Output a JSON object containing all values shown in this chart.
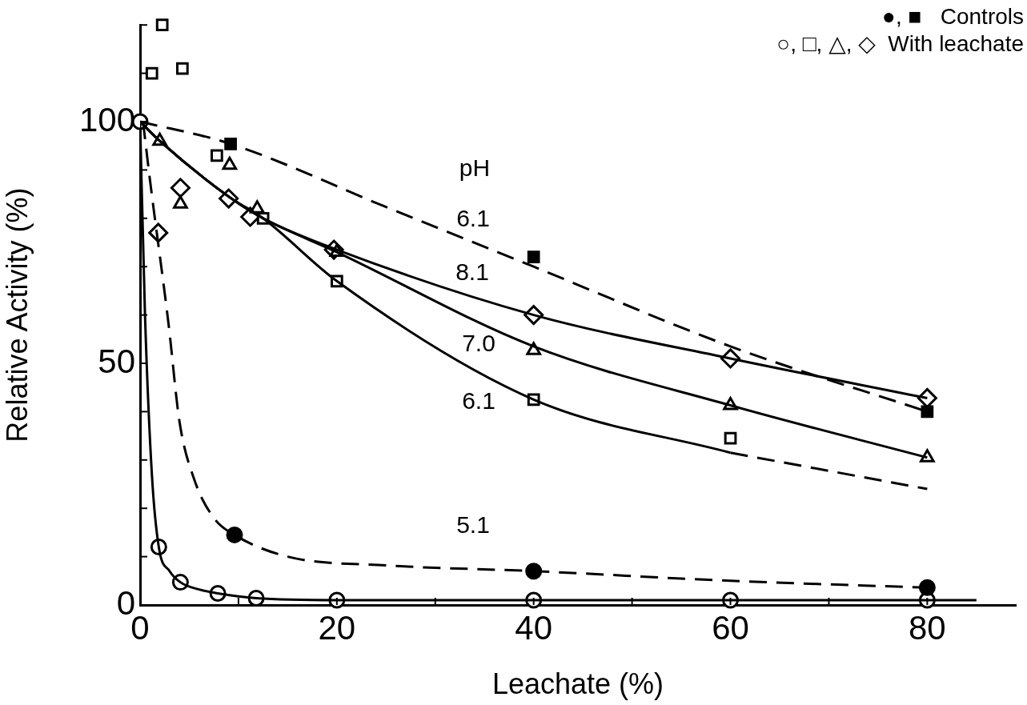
{
  "chart_data": {
    "type": "line",
    "xlabel": "Leachate (%)",
    "ylabel": "Relative Activity (%)",
    "xlim": [
      0,
      89
    ],
    "xticks": [
      0,
      {
        "value": 10,
        "label": null
      },
      20,
      {
        "value": 30,
        "label": null
      },
      40,
      {
        "value": 50,
        "label": null
      },
      60,
      {
        "value": 70,
        "label": null
      },
      80
    ],
    "ylim": [
      0,
      120
    ],
    "yticks": [
      0,
      {
        "value": 10,
        "label": null
      },
      {
        "value": 20,
        "label": null
      },
      {
        "value": 30,
        "label": null
      },
      {
        "value": 40,
        "label": null
      },
      50,
      {
        "value": 60,
        "label": null
      },
      {
        "value": 70,
        "label": null
      },
      {
        "value": 80,
        "label": null
      },
      {
        "value": 90,
        "label": null
      },
      100,
      {
        "value": 110,
        "label": null
      },
      {
        "value": 120,
        "label": null
      }
    ],
    "grid": false,
    "legend": false,
    "series": [
      {
        "color": "#000000",
        "line_style": "dashed",
        "marker": "none",
        "x": [
          0,
          9.2,
          24.8,
          40,
          60,
          80
        ],
        "values": [
          100,
          95.4,
          82.5,
          70,
          53.5,
          40
        ]
      },
      {
        "type": "line",
        "color": "#000000",
        "line_style": "dashed",
        "marker": "none",
        "x": [
          0.3,
          1,
          2.9,
          4,
          5.5,
          7.5,
          9.6,
          15,
          25,
          40,
          60,
          80
        ],
        "values": [
          100,
          88,
          58,
          38,
          26,
          18,
          14.5,
          10,
          8.2,
          7,
          5,
          3.6
        ]
      },
      {
        "type": "line",
        "color": "#000000",
        "line_style": "solid",
        "marker": "none",
        "x": [
          0,
          0.5,
          1.2,
          1.9,
          3,
          4.1,
          6,
          7.9,
          11.8,
          20,
          40,
          60,
          80,
          85
        ],
        "values": [
          100,
          60,
          27,
          12,
          7,
          4.7,
          3.2,
          2.4,
          1.4,
          1,
          1,
          1,
          1,
          1
        ]
      },
      {
        "type": "line",
        "color": "#000000",
        "line_style": "solid",
        "marker": "none",
        "x": [
          0,
          2,
          9,
          12.5,
          20,
          40,
          60
        ],
        "values": [
          100,
          96,
          84.5,
          80,
          67,
          42.5,
          31.5
        ]
      },
      {
        "type": "line",
        "color": "#000000",
        "line_style": "dashed",
        "marker": "none",
        "x": [
          60,
          80
        ],
        "values": [
          31.5,
          24
        ]
      },
      {
        "type": "line",
        "color": "#000000",
        "line_style": "solid",
        "marker": "none",
        "x": [
          0,
          2,
          9,
          12.5,
          20,
          40,
          60,
          80
        ],
        "values": [
          100,
          96,
          84.5,
          80,
          73,
          53.5,
          41.3,
          30.5
        ]
      },
      {
        "type": "line",
        "color": "#000000",
        "line_style": "solid",
        "marker": "none",
        "x": [
          0,
          2,
          9,
          12.5,
          20,
          40,
          60,
          80
        ],
        "values": [
          100,
          96,
          84.5,
          80,
          73.5,
          60,
          51,
          42.8
        ]
      },
      {
        "type": "scatter",
        "color": "#000000",
        "marker": "square",
        "x": [
          9.2,
          40,
          80
        ],
        "values": [
          95.4,
          72,
          40
        ]
      },
      {
        "type": "scatter",
        "color": "#000000",
        "marker": "circle",
        "x": [
          9.6,
          40,
          80
        ],
        "values": [
          14.5,
          7,
          3.6
        ]
      },
      {
        "type": "scatter",
        "color": "#ffffff",
        "marker": "square",
        "x": [
          1.2,
          2.25,
          4.3,
          7.8,
          12.5,
          20,
          40,
          60
        ],
        "values": [
          110,
          120,
          111,
          93,
          80,
          67,
          42.5,
          34.5
        ]
      },
      {
        "type": "scatter",
        "color": "#ffffff",
        "marker": "triangle",
        "x": [
          2,
          4.1,
          9.1,
          11.9,
          20,
          40,
          60,
          80
        ],
        "values": [
          96,
          83,
          91,
          82,
          73,
          52.7,
          41.3,
          30.5
        ]
      },
      {
        "type": "scatter",
        "color": "#ffffff",
        "marker": "diamond",
        "x": [
          1.85,
          4.1,
          9,
          11.2,
          19.7,
          40,
          60,
          80
        ],
        "values": [
          77,
          86.3,
          84.1,
          80.3,
          73.5,
          60,
          51,
          42.8
        ]
      },
      {
        "type": "scatter",
        "color": "#ffffff",
        "marker": "circle",
        "x": [
          0,
          1.9,
          4.1,
          7.9,
          11.8,
          20,
          40,
          60,
          80
        ],
        "values": [
          100,
          12,
          4.7,
          2.4,
          1.4,
          1,
          1,
          1,
          1
        ]
      }
    ],
    "annotations": [
      "●, ■   Controls",
      "○, □, △, ◇  With leachate",
      "pH",
      "6.1",
      "8.1",
      "7.0",
      "6.1",
      "5.1"
    ]
  }
}
